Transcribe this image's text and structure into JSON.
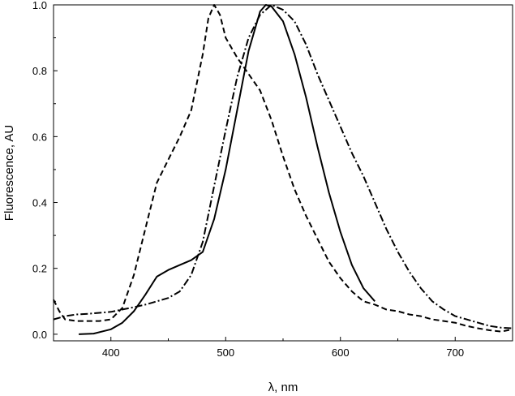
{
  "chart_data": {
    "type": "line",
    "title": "",
    "xlabel": "λ, nm",
    "ylabel": "Fluorescence, AU",
    "xlim": [
      350,
      750
    ],
    "ylim": [
      -0.02,
      1.0
    ],
    "xticks": [
      400,
      500,
      600,
      700
    ],
    "yticks": [
      0.0,
      0.2,
      0.4,
      0.6,
      0.8,
      1.0
    ],
    "xtick_labels": [
      "400",
      "500",
      "600",
      "700"
    ],
    "ytick_labels": [
      "0.0",
      "0.2",
      "0.4",
      "0.6",
      "0.8",
      "1.0"
    ],
    "grid": false,
    "legend": "none",
    "series": [
      {
        "style": "solid",
        "color": "#000000",
        "points": [
          [
            372,
            0.0
          ],
          [
            385,
            0.002
          ],
          [
            400,
            0.015
          ],
          [
            410,
            0.035
          ],
          [
            420,
            0.07
          ],
          [
            430,
            0.12
          ],
          [
            440,
            0.175
          ],
          [
            450,
            0.195
          ],
          [
            460,
            0.21
          ],
          [
            470,
            0.225
          ],
          [
            480,
            0.25
          ],
          [
            490,
            0.35
          ],
          [
            500,
            0.5
          ],
          [
            510,
            0.68
          ],
          [
            520,
            0.86
          ],
          [
            530,
            0.98
          ],
          [
            535,
            1.0
          ],
          [
            540,
            0.995
          ],
          [
            550,
            0.95
          ],
          [
            560,
            0.85
          ],
          [
            570,
            0.72
          ],
          [
            580,
            0.57
          ],
          [
            590,
            0.43
          ],
          [
            600,
            0.31
          ],
          [
            610,
            0.21
          ],
          [
            620,
            0.14
          ],
          [
            630,
            0.1
          ]
        ]
      },
      {
        "style": "dashed",
        "color": "#000000",
        "points": [
          [
            350,
            0.105
          ],
          [
            355,
            0.07
          ],
          [
            360,
            0.045
          ],
          [
            370,
            0.04
          ],
          [
            380,
            0.04
          ],
          [
            390,
            0.04
          ],
          [
            400,
            0.045
          ],
          [
            410,
            0.08
          ],
          [
            420,
            0.18
          ],
          [
            430,
            0.32
          ],
          [
            440,
            0.46
          ],
          [
            450,
            0.53
          ],
          [
            460,
            0.6
          ],
          [
            470,
            0.68
          ],
          [
            480,
            0.85
          ],
          [
            485,
            0.96
          ],
          [
            490,
            1.0
          ],
          [
            495,
            0.97
          ],
          [
            500,
            0.9
          ],
          [
            510,
            0.84
          ],
          [
            520,
            0.79
          ],
          [
            530,
            0.74
          ],
          [
            540,
            0.65
          ],
          [
            550,
            0.54
          ],
          [
            560,
            0.44
          ],
          [
            570,
            0.36
          ],
          [
            580,
            0.29
          ],
          [
            590,
            0.22
          ],
          [
            600,
            0.17
          ],
          [
            610,
            0.13
          ],
          [
            620,
            0.1
          ],
          [
            630,
            0.09
          ],
          [
            640,
            0.075
          ],
          [
            650,
            0.07
          ],
          [
            660,
            0.06
          ],
          [
            670,
            0.055
          ],
          [
            680,
            0.045
          ],
          [
            690,
            0.04
          ],
          [
            700,
            0.035
          ],
          [
            710,
            0.025
          ],
          [
            720,
            0.018
          ],
          [
            730,
            0.012
          ],
          [
            740,
            0.008
          ],
          [
            750,
            0.015
          ]
        ]
      },
      {
        "style": "dashdot",
        "color": "#000000",
        "points": [
          [
            350,
            0.045
          ],
          [
            360,
            0.055
          ],
          [
            370,
            0.06
          ],
          [
            380,
            0.062
          ],
          [
            390,
            0.065
          ],
          [
            400,
            0.068
          ],
          [
            410,
            0.075
          ],
          [
            420,
            0.082
          ],
          [
            430,
            0.09
          ],
          [
            440,
            0.1
          ],
          [
            450,
            0.11
          ],
          [
            460,
            0.13
          ],
          [
            470,
            0.18
          ],
          [
            480,
            0.28
          ],
          [
            490,
            0.45
          ],
          [
            500,
            0.62
          ],
          [
            510,
            0.78
          ],
          [
            520,
            0.9
          ],
          [
            530,
            0.97
          ],
          [
            540,
            1.0
          ],
          [
            550,
            0.985
          ],
          [
            560,
            0.95
          ],
          [
            570,
            0.88
          ],
          [
            580,
            0.79
          ],
          [
            590,
            0.71
          ],
          [
            600,
            0.63
          ],
          [
            610,
            0.55
          ],
          [
            620,
            0.48
          ],
          [
            630,
            0.4
          ],
          [
            640,
            0.32
          ],
          [
            650,
            0.25
          ],
          [
            660,
            0.19
          ],
          [
            670,
            0.14
          ],
          [
            680,
            0.1
          ],
          [
            690,
            0.075
          ],
          [
            700,
            0.055
          ],
          [
            710,
            0.045
          ],
          [
            720,
            0.035
          ],
          [
            730,
            0.025
          ],
          [
            740,
            0.02
          ],
          [
            750,
            0.018
          ]
        ]
      }
    ]
  }
}
